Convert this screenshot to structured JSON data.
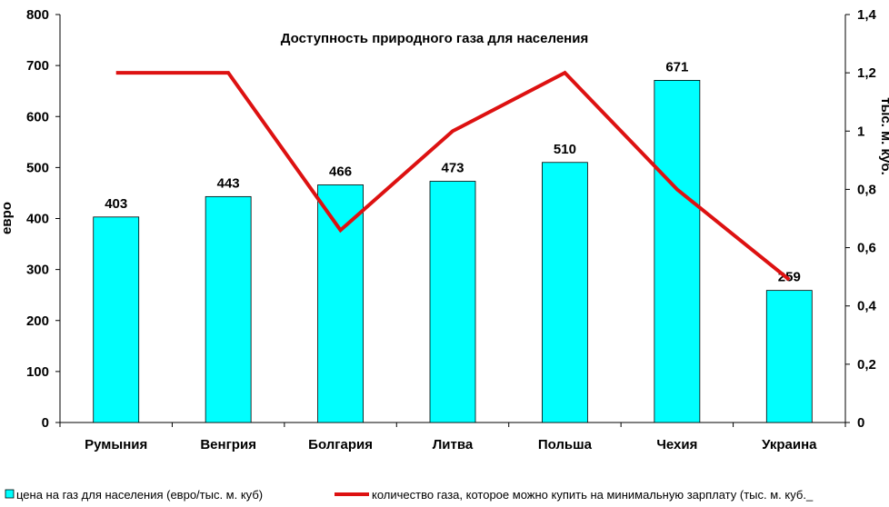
{
  "chart_data": {
    "type": "bar",
    "title": "Доступность природного газа для населения",
    "categories": [
      "Румыния",
      "Венгрия",
      "Болгария",
      "Литва",
      "Польша",
      "Чехия",
      "Украина"
    ],
    "ylabel": "евро",
    "y2label": "тыс. м. куб.",
    "ylim": [
      0,
      800
    ],
    "y2lim": [
      0,
      1.4
    ],
    "yticks": [
      "0",
      "100",
      "200",
      "300",
      "400",
      "500",
      "600",
      "700",
      "800"
    ],
    "y2ticks": [
      "0",
      "0,2",
      "0,4",
      "0,6",
      "0,8",
      "1",
      "1,2",
      "1,4"
    ],
    "grid": false,
    "legend_position": "bottom",
    "series": [
      {
        "name": "цена на газ для населения (евро/тыс. м. куб)",
        "type": "bar",
        "axis": "left",
        "color": "#00FFFF",
        "values": [
          403,
          443,
          466,
          473,
          510,
          671,
          259
        ],
        "labels": [
          "403",
          "443",
          "466",
          "473",
          "510",
          "671",
          "259"
        ]
      },
      {
        "name": "количество газа, которое можно купить на минимальную зарплату (тыс. м. куб._",
        "type": "line",
        "axis": "right",
        "color": "#DD1111",
        "values": [
          1.2,
          1.2,
          0.66,
          1.0,
          1.2,
          0.8,
          0.49
        ]
      }
    ]
  }
}
